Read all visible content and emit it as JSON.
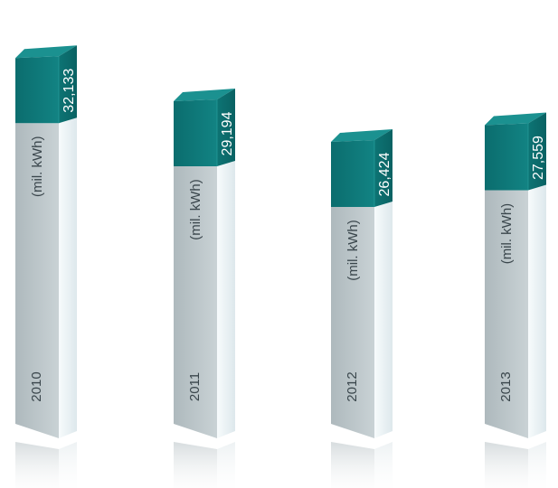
{
  "chart_data": {
    "type": "bar",
    "categories": [
      "2010",
      "2011",
      "2012",
      "2013"
    ],
    "values": [
      32133,
      29194,
      26424,
      27559
    ],
    "value_labels": [
      "32,133",
      "29,194",
      "26,424",
      "27,559"
    ],
    "unit_label": "(mil. kWh)",
    "colors": {
      "cap_front": "#0e7b7b",
      "cap_side": "#0a5f60",
      "cap_top": "#1a8f8e",
      "body_front_light": "#c7d0d3",
      "body_front_dark": "#97a3a8",
      "body_side_light": "#f5fafb",
      "body_side_dark": "#dfeaee"
    },
    "title": "",
    "xlabel": "",
    "ylabel": ""
  }
}
